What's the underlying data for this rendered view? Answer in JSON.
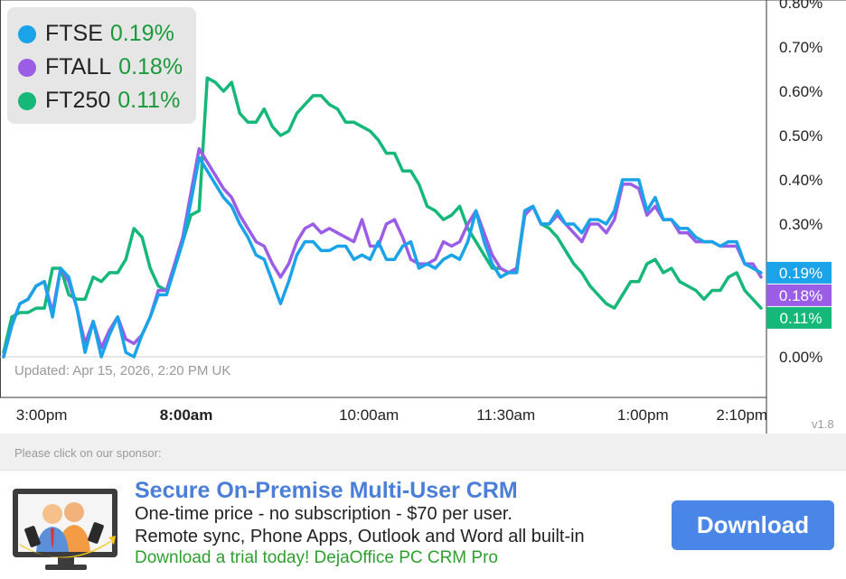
{
  "legend": [
    {
      "name": "FTSE",
      "pct": "0.19%",
      "color": "#1aa3e8"
    },
    {
      "name": "FTALL",
      "pct": "0.18%",
      "color": "#9b5de5"
    },
    {
      "name": "FT250",
      "pct": "0.11%",
      "color": "#16b87a"
    }
  ],
  "updated_text": "Updated: Apr 15, 2026, 2:20 PM UK",
  "version": "v1.8",
  "chart_data": {
    "type": "line",
    "y_axis": {
      "min": 0.0,
      "max": 0.8,
      "ticks": [
        0.0,
        0.1,
        0.2,
        0.3,
        0.4,
        0.5,
        0.6,
        0.7,
        0.8
      ],
      "tick_labels": [
        "0.00%",
        "",
        "",
        "0.30%",
        "0.40%",
        "0.50%",
        "0.60%",
        "0.70%",
        "0.80%"
      ]
    },
    "x_axis": {
      "range": [
        0,
        100
      ],
      "ticks": [
        {
          "x": 5,
          "label": "3:00pm",
          "bold": false
        },
        {
          "x": 24,
          "label": "8:00am",
          "bold": true
        },
        {
          "x": 48,
          "label": "10:00am",
          "bold": false
        },
        {
          "x": 66,
          "label": "11:30am",
          "bold": false
        },
        {
          "x": 84,
          "label": "1:00pm",
          "bold": false
        },
        {
          "x": 97,
          "label": "2:10pm",
          "bold": false
        }
      ]
    },
    "end_labels": [
      {
        "series": "FTSE",
        "label": "0.19%",
        "value": 0.19
      },
      {
        "series": "FTALL",
        "label": "0.18%",
        "value": 0.18
      },
      {
        "series": "FT250",
        "label": "0.11%",
        "value": 0.11
      }
    ],
    "series": [
      {
        "name": "FTSE",
        "color": "#1aa3e8",
        "values": [
          0.0,
          0.07,
          0.12,
          0.13,
          0.16,
          0.17,
          0.09,
          0.2,
          0.18,
          0.11,
          0.01,
          0.08,
          0.0,
          0.05,
          0.09,
          0.01,
          0.0,
          0.05,
          0.09,
          0.14,
          0.14,
          0.2,
          0.26,
          0.35,
          0.45,
          0.42,
          0.39,
          0.36,
          0.34,
          0.3,
          0.27,
          0.23,
          0.22,
          0.17,
          0.12,
          0.17,
          0.23,
          0.26,
          0.26,
          0.24,
          0.24,
          0.25,
          0.25,
          0.22,
          0.23,
          0.22,
          0.26,
          0.22,
          0.22,
          0.25,
          0.26,
          0.2,
          0.21,
          0.2,
          0.22,
          0.23,
          0.22,
          0.26,
          0.33,
          0.26,
          0.21,
          0.18,
          0.19,
          0.19,
          0.33,
          0.34,
          0.3,
          0.3,
          0.33,
          0.3,
          0.3,
          0.28,
          0.31,
          0.31,
          0.3,
          0.33,
          0.4,
          0.4,
          0.4,
          0.33,
          0.36,
          0.31,
          0.31,
          0.29,
          0.29,
          0.27,
          0.26,
          0.26,
          0.25,
          0.26,
          0.26,
          0.21,
          0.2,
          0.19
        ]
      },
      {
        "name": "FTALL",
        "color": "#9b5de5",
        "values": [
          0.0,
          0.07,
          0.12,
          0.13,
          0.16,
          0.17,
          0.1,
          0.2,
          0.17,
          0.11,
          0.03,
          0.08,
          0.02,
          0.06,
          0.09,
          0.04,
          0.03,
          0.05,
          0.09,
          0.15,
          0.15,
          0.21,
          0.27,
          0.37,
          0.47,
          0.44,
          0.41,
          0.38,
          0.36,
          0.32,
          0.29,
          0.26,
          0.25,
          0.21,
          0.18,
          0.21,
          0.26,
          0.29,
          0.3,
          0.28,
          0.29,
          0.28,
          0.27,
          0.26,
          0.31,
          0.25,
          0.25,
          0.3,
          0.31,
          0.27,
          0.22,
          0.21,
          0.21,
          0.22,
          0.26,
          0.25,
          0.26,
          0.3,
          0.33,
          0.28,
          0.23,
          0.2,
          0.19,
          0.2,
          0.32,
          0.34,
          0.3,
          0.3,
          0.32,
          0.3,
          0.28,
          0.26,
          0.3,
          0.3,
          0.28,
          0.31,
          0.39,
          0.39,
          0.38,
          0.32,
          0.34,
          0.31,
          0.31,
          0.28,
          0.28,
          0.26,
          0.26,
          0.26,
          0.25,
          0.25,
          0.25,
          0.21,
          0.21,
          0.18
        ]
      },
      {
        "name": "FT250",
        "color": "#16b87a",
        "values": [
          0.01,
          0.09,
          0.1,
          0.1,
          0.11,
          0.11,
          0.2,
          0.2,
          0.14,
          0.13,
          0.13,
          0.18,
          0.17,
          0.19,
          0.19,
          0.22,
          0.29,
          0.27,
          0.2,
          0.16,
          0.15,
          0.2,
          0.26,
          0.32,
          0.33,
          0.63,
          0.62,
          0.6,
          0.62,
          0.55,
          0.53,
          0.53,
          0.56,
          0.52,
          0.5,
          0.51,
          0.55,
          0.57,
          0.59,
          0.59,
          0.57,
          0.56,
          0.53,
          0.53,
          0.52,
          0.51,
          0.49,
          0.46,
          0.46,
          0.42,
          0.42,
          0.39,
          0.34,
          0.33,
          0.31,
          0.32,
          0.34,
          0.29,
          0.26,
          0.23,
          0.2,
          0.2,
          0.19,
          0.2,
          0.33,
          0.34,
          0.3,
          0.29,
          0.27,
          0.24,
          0.21,
          0.19,
          0.16,
          0.14,
          0.12,
          0.11,
          0.14,
          0.17,
          0.17,
          0.21,
          0.22,
          0.19,
          0.2,
          0.17,
          0.16,
          0.15,
          0.13,
          0.15,
          0.15,
          0.18,
          0.19,
          0.15,
          0.13,
          0.11
        ]
      }
    ]
  },
  "sponsor": {
    "label": "Please click on our sponsor:",
    "title": "Secure On-Premise Multi-User CRM",
    "line1": "One-time price - no subscription - $70 per user.",
    "line2": "Remote sync, Phone Apps, Outlook and Word all built-in",
    "cta": "Download a trial today! DejaOffice PC CRM Pro",
    "button": "Download"
  }
}
